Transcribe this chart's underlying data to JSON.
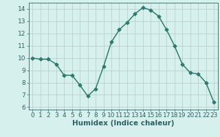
{
  "x": [
    0,
    1,
    2,
    3,
    4,
    5,
    6,
    7,
    8,
    9,
    10,
    11,
    12,
    13,
    14,
    15,
    16,
    17,
    18,
    19,
    20,
    21,
    22,
    23
  ],
  "y": [
    10.0,
    9.9,
    9.9,
    9.5,
    8.6,
    8.6,
    7.8,
    6.9,
    7.5,
    9.3,
    11.3,
    12.3,
    12.9,
    13.6,
    14.1,
    13.9,
    13.4,
    12.3,
    11.0,
    9.5,
    8.8,
    8.7,
    8.0,
    6.4
  ],
  "line_color": "#2e7b6e",
  "marker": "D",
  "marker_size": 2.5,
  "bg_color": "#d6f0ee",
  "grid_color": "#b8d0ce",
  "xlabel": "Humidex (Indice chaleur)",
  "ylim": [
    5.8,
    14.5
  ],
  "xlim": [
    -0.5,
    23.5
  ],
  "yticks": [
    6,
    7,
    8,
    9,
    10,
    11,
    12,
    13,
    14
  ],
  "xticks": [
    0,
    1,
    2,
    3,
    4,
    5,
    6,
    7,
    8,
    9,
    10,
    11,
    12,
    13,
    14,
    15,
    16,
    17,
    18,
    19,
    20,
    21,
    22,
    23
  ],
  "xlabel_fontsize": 7.5,
  "tick_fontsize": 6.5,
  "linewidth": 1.1
}
